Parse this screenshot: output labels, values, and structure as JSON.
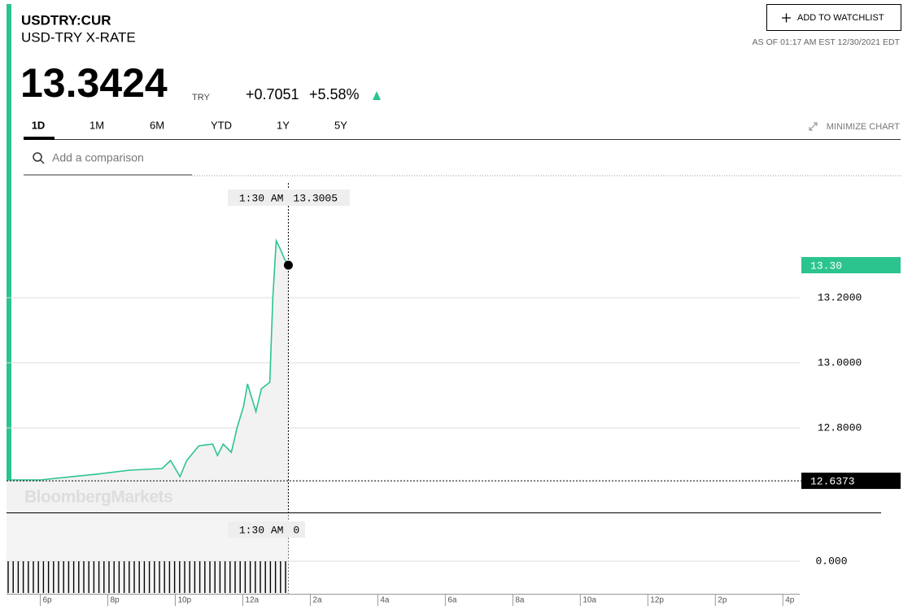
{
  "header": {
    "symbol": "USDTRY:CUR",
    "name": "USD-TRY X-RATE",
    "price": "13.3424",
    "currency": "TRY",
    "change": "+0.7051",
    "change_pct": "+5.58%",
    "watchlist": "ADD TO WATCHLIST",
    "as_of": "AS OF 01:17 AM EST 12/30/2021 EDT"
  },
  "tabs": [
    "1D",
    "1M",
    "6M",
    "YTD",
    "1Y",
    "5Y"
  ],
  "minimize": "MINIMIZE CHART",
  "search_placeholder": "Add a comparison",
  "chart_data": {
    "type": "line",
    "x": [
      -1.0,
      0,
      1.69,
      2.65,
      3.61,
      3.86,
      4.14,
      4.34,
      4.7,
      5.11,
      5.25,
      5.42,
      5.66,
      5.83,
      6.02,
      6.14,
      6.39,
      6.55,
      6.8,
      6.89,
      6.99,
      7.11,
      7.23,
      7.35
    ],
    "series": [
      {
        "color": "#2bc48f",
        "values": [
          12.64,
          12.64,
          12.658,
          12.67,
          12.675,
          12.7,
          12.65,
          12.7,
          12.745,
          12.75,
          12.715,
          12.75,
          12.725,
          12.8,
          12.865,
          12.935,
          12.85,
          12.92,
          12.94,
          13.2,
          13.375,
          13.35,
          13.32,
          13.3
        ]
      }
    ],
    "xlim": [
      -1,
      22.5
    ],
    "ylim": [
      12.54,
      13.57
    ],
    "xticks": [
      {
        "value": 0,
        "label": "6p"
      },
      {
        "value": 2,
        "label": "8p"
      },
      {
        "value": 4,
        "label": "10p"
      },
      {
        "value": 6,
        "label": "12a"
      },
      {
        "value": 8,
        "label": "2a"
      },
      {
        "value": 10,
        "label": "4a"
      },
      {
        "value": 12,
        "label": "6a"
      },
      {
        "value": 14,
        "label": "8a"
      },
      {
        "value": 16,
        "label": "10a"
      },
      {
        "value": 18,
        "label": "12p"
      },
      {
        "value": 20,
        "label": "2p"
      },
      {
        "value": 22,
        "label": "4p"
      }
    ],
    "yticks": [
      {
        "value": 12.8,
        "label": "12.8000"
      },
      {
        "value": 13.0,
        "label": "13.0000"
      },
      {
        "value": 13.2,
        "label": "13.2000"
      }
    ],
    "grid": true,
    "reference": {
      "value": 12.6373,
      "label": "12.6373"
    },
    "last": {
      "value": 13.3,
      "label": "13.30"
    },
    "tooltip": {
      "time": "1:30 AM",
      "value": 13.3005
    },
    "watermark": "BloombergMarkets",
    "volume": {
      "tooltip_time": "1:30 AM",
      "tooltip_value": 0,
      "yticks": [
        {
          "value": 0,
          "label": "0.000"
        }
      ]
    }
  }
}
